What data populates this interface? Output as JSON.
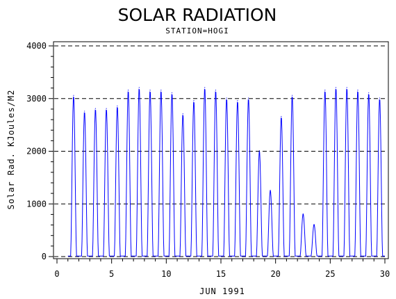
{
  "chart_data": {
    "type": "line",
    "title": "SOLAR RADIATION",
    "subtitle": "STATION=HOGI",
    "xlabel": "JUN 1991",
    "ylabel": "Solar Rad. KJoules/M2",
    "xlim": [
      0,
      30
    ],
    "ylim": [
      0,
      4000
    ],
    "x_ticks": [
      0,
      5,
      10,
      15,
      20,
      25,
      30
    ],
    "y_ticks": [
      0,
      1000,
      2000,
      3000,
      4000
    ],
    "grid": "horizontal dashed",
    "series_color": "#0000ff",
    "series": [
      {
        "daily_peaks": [
          {
            "day": 1,
            "peak": 3050
          },
          {
            "day": 2,
            "peak": 2750
          },
          {
            "day": 3,
            "peak": 2800
          },
          {
            "day": 4,
            "peak": 2800
          },
          {
            "day": 5,
            "peak": 2850
          },
          {
            "day": 6,
            "peak": 3150
          },
          {
            "day": 7,
            "peak": 3200
          },
          {
            "day": 8,
            "peak": 3150
          },
          {
            "day": 9,
            "peak": 3150
          },
          {
            "day": 10,
            "peak": 3100
          },
          {
            "day": 11,
            "peak": 2700
          },
          {
            "day": 12,
            "peak": 2950
          },
          {
            "day": 13,
            "peak": 3200
          },
          {
            "day": 14,
            "peak": 3150
          },
          {
            "day": 15,
            "peak": 3000
          },
          {
            "day": 16,
            "peak": 2950
          },
          {
            "day": 17,
            "peak": 3000
          },
          {
            "day": 18,
            "peak": 2000
          },
          {
            "day": 19,
            "peak": 1250
          },
          {
            "day": 20,
            "peak": 2650
          },
          {
            "day": 21,
            "peak": 3050
          },
          {
            "day": 22,
            "peak": 800
          },
          {
            "day": 23,
            "peak": 600
          },
          {
            "day": 24,
            "peak": 3150
          },
          {
            "day": 25,
            "peak": 3200
          },
          {
            "day": 26,
            "peak": 3200
          },
          {
            "day": 27,
            "peak": 3150
          },
          {
            "day": 28,
            "peak": 3100
          },
          {
            "day": 29,
            "peak": 3000
          }
        ]
      }
    ]
  }
}
